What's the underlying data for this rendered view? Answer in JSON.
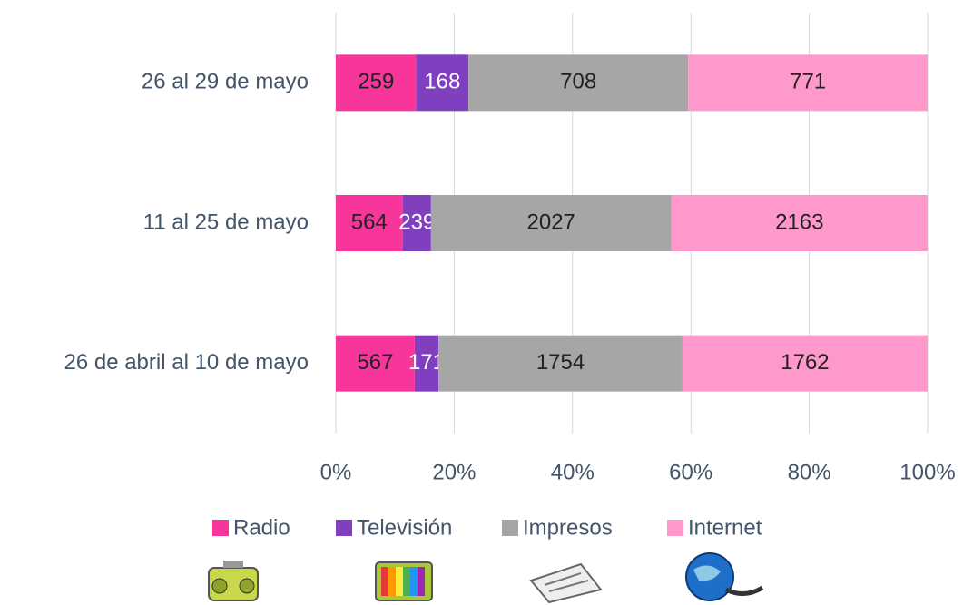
{
  "chart_data": {
    "type": "bar",
    "orientation": "horizontal",
    "stacking": "percent",
    "categories": [
      "26 al 29 de mayo",
      "11 al 25 de mayo",
      "26 de abril al 10 de mayo"
    ],
    "series": [
      {
        "name": "Radio",
        "color": "#f7359b",
        "label_color": "#222222",
        "values": [
          259,
          564,
          567
        ]
      },
      {
        "name": "Televisión",
        "color": "#7f3fbf",
        "label_color": "#ffffff",
        "values": [
          168,
          239,
          171
        ]
      },
      {
        "name": "Impresos",
        "color": "#a6a6a6",
        "label_color": "#222222",
        "values": [
          708,
          2027,
          1754
        ]
      },
      {
        "name": "Internet",
        "color": "#ff99cc",
        "label_color": "#222222",
        "values": [
          771,
          2163,
          1762
        ]
      }
    ],
    "xlim": [
      0,
      100
    ],
    "xticks": [
      {
        "value": 0,
        "label": "0%"
      },
      {
        "value": 20,
        "label": "20%"
      },
      {
        "value": 40,
        "label": "40%"
      },
      {
        "value": 60,
        "label": "60%"
      },
      {
        "value": 80,
        "label": "80%"
      },
      {
        "value": 100,
        "label": "100%"
      }
    ],
    "grid": true,
    "legend": "bottom"
  }
}
